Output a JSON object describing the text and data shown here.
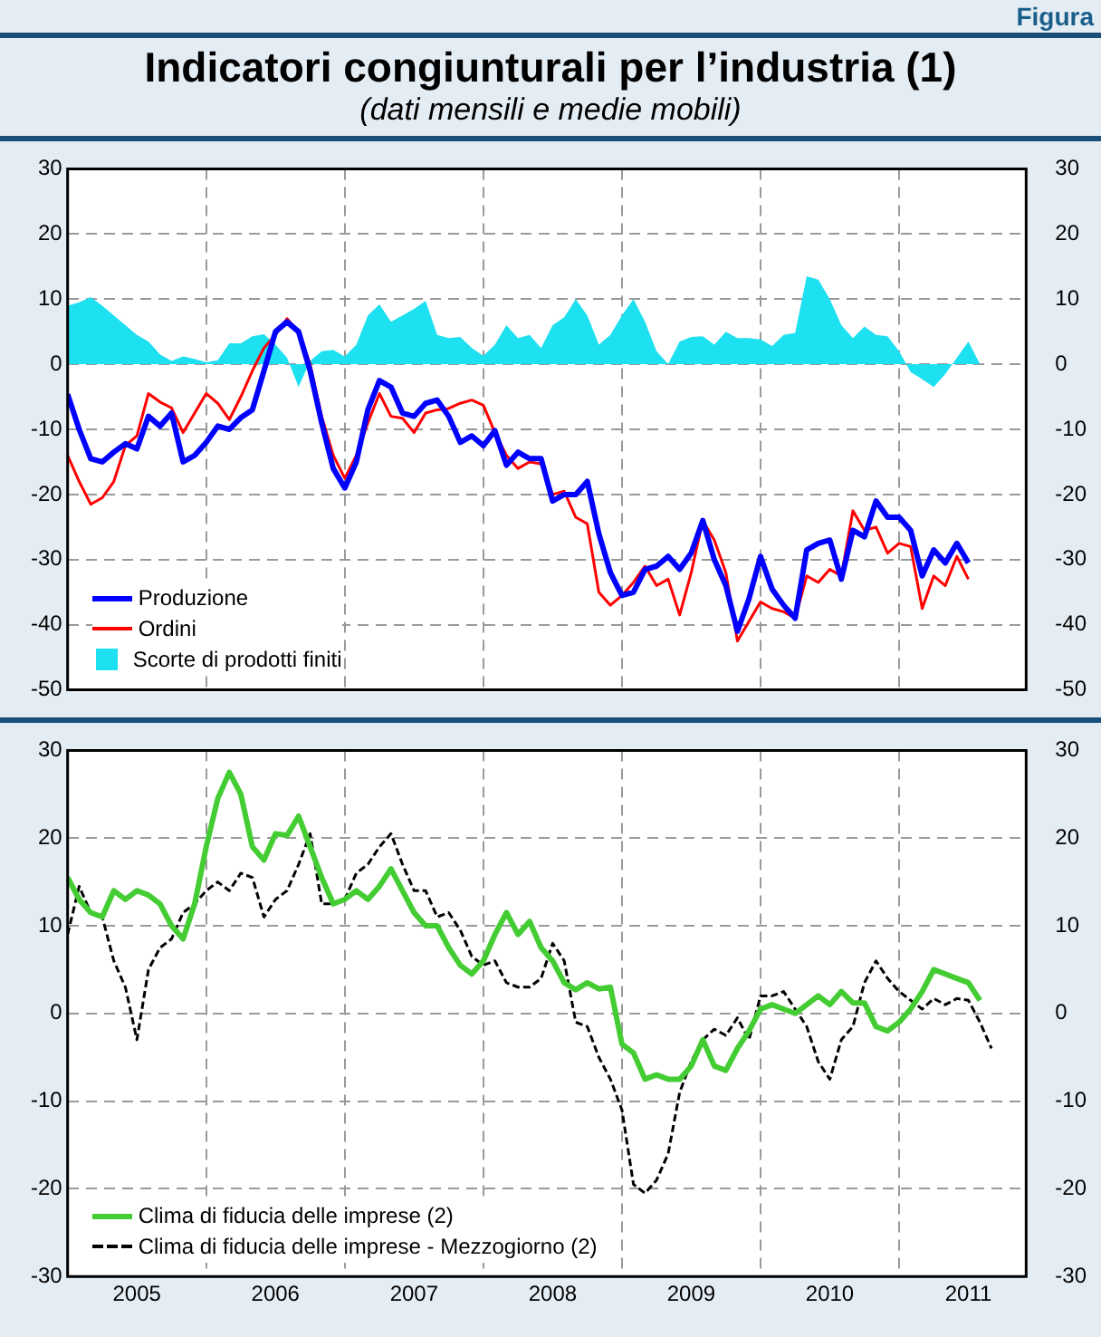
{
  "chart_data": [
    {
      "type": "line",
      "title": "Indicatori congiunturali per l’industria (1)",
      "subtitle": "(dati mensili e medie mobili)",
      "annotations": [
        "Figura"
      ],
      "x": [
        "2005-01",
        "2005-02",
        "2005-03",
        "2005-04",
        "2005-05",
        "2005-06",
        "2005-07",
        "2005-08",
        "2005-09",
        "2005-10",
        "2005-11",
        "2005-12",
        "2006-01",
        "2006-02",
        "2006-03",
        "2006-04",
        "2006-05",
        "2006-06",
        "2006-07",
        "2006-08",
        "2006-09",
        "2006-10",
        "2006-11",
        "2006-12",
        "2007-01",
        "2007-02",
        "2007-03",
        "2007-04",
        "2007-05",
        "2007-06",
        "2007-07",
        "2007-08",
        "2007-09",
        "2007-10",
        "2007-11",
        "2007-12",
        "2008-01",
        "2008-02",
        "2008-03",
        "2008-04",
        "2008-05",
        "2008-06",
        "2008-07",
        "2008-08",
        "2008-09",
        "2008-10",
        "2008-11",
        "2008-12",
        "2009-01",
        "2009-02",
        "2009-03",
        "2009-04",
        "2009-05",
        "2009-06",
        "2009-07",
        "2009-08",
        "2009-09",
        "2009-10",
        "2009-11",
        "2009-12",
        "2010-01",
        "2010-02",
        "2010-03",
        "2010-04",
        "2010-05",
        "2010-06",
        "2010-07",
        "2010-08",
        "2010-09",
        "2010-10",
        "2010-11",
        "2010-12",
        "2011-01",
        "2011-02",
        "2011-03",
        "2011-04",
        "2011-05",
        "2011-06",
        "2011-07",
        "2011-08"
      ],
      "series": [
        {
          "name": "Produzione",
          "color": "#0000ff",
          "line_style": "solid",
          "values": [
            -4.6,
            -10,
            -14.5,
            -15,
            -13.5,
            -12.2,
            -13,
            -8,
            -9.5,
            -7.5,
            -15,
            -14,
            -12,
            -9.5,
            -10,
            -8.2,
            -7,
            -1,
            5,
            6.5,
            5,
            -1,
            -9,
            -16,
            -19,
            -15,
            -7,
            -2.5,
            -3.5,
            -7.5,
            -8,
            -6,
            -5.5,
            -8,
            -12,
            -11,
            -12.5,
            -10.2,
            -15.5,
            -13.5,
            -14.5,
            -14.5,
            -21,
            -20,
            -20,
            -18,
            -26,
            -32,
            -35.5,
            -35,
            -31.5,
            -31,
            -29.5,
            -31.5,
            -29,
            -24,
            -30,
            -34,
            -41,
            -36,
            -29.5,
            -34.5,
            -37,
            -39,
            -28.5,
            -27.5,
            -27,
            -33,
            -25.5,
            -26.5,
            -21,
            -23.5,
            -23.5,
            -25.5,
            -32.5,
            -28.5,
            -30.5,
            -27.5,
            -30.5,
            null
          ]
        },
        {
          "name": "Ordini",
          "color": "#ff0000",
          "line_style": "solid",
          "values": [
            -14,
            -18,
            -21.5,
            -20.5,
            -18,
            -12.5,
            -11,
            -4.5,
            -5.8,
            -6.7,
            -10.5,
            -7.5,
            -4.5,
            -6,
            -8.5,
            -5,
            -1,
            2.5,
            4.5,
            7,
            5,
            0,
            -8,
            -14,
            -17.5,
            -14,
            -9,
            -4.5,
            -8,
            -8.3,
            -10.5,
            -7.5,
            -7,
            -6.8,
            -6,
            -5.5,
            -6.3,
            -10.5,
            -14,
            -16,
            -15,
            -15.3,
            -20,
            -19.5,
            -23.5,
            -24.5,
            -35,
            -37,
            -35.5,
            -33.5,
            -31,
            -34,
            -33,
            -38.5,
            -32,
            -24,
            -27,
            -32,
            -42.5,
            -39.5,
            -36.5,
            -37.5,
            -38,
            -39,
            -32.5,
            -33.5,
            -31.5,
            -32.5,
            -22.5,
            -25.5,
            -25,
            -29,
            -27.5,
            -28,
            -37.5,
            -32.5,
            -34,
            -29.5,
            -33,
            null
          ]
        },
        {
          "name": "Scorte di prodotti finiti",
          "type": "area",
          "color": "#1de0f0",
          "values": [
            9,
            9.5,
            10.3,
            9,
            7.5,
            6,
            4.5,
            3.5,
            1.5,
            0.5,
            1.2,
            0.8,
            0.3,
            0.6,
            3.2,
            3.2,
            4.3,
            4.6,
            3,
            1,
            -3.5,
            0.5,
            2,
            2.2,
            1.2,
            3,
            7.5,
            9.2,
            6.5,
            7.5,
            8.5,
            9.7,
            4.5,
            4,
            4.2,
            2.5,
            1.3,
            3,
            6,
            4,
            4.5,
            2.5,
            6,
            7.2,
            10,
            7.5,
            3,
            4.5,
            7.5,
            10,
            6.5,
            2,
            0,
            3.5,
            4.2,
            4.3,
            3,
            5,
            4,
            4,
            3.8,
            2.8,
            4.5,
            4.8,
            13.5,
            13,
            10,
            6,
            4,
            5.8,
            4.5,
            4.3,
            2,
            -1.2,
            -2.3,
            -3.5,
            -1.5,
            1,
            3.5,
            0
          ]
        }
      ],
      "xlim": [
        "2005-01",
        "2011-12"
      ],
      "xticks": [
        {
          "value": "2006-01",
          "label": null
        },
        {
          "value": "2007-01",
          "label": null
        },
        {
          "value": "2008-01",
          "label": null
        },
        {
          "value": "2009-01",
          "label": null
        },
        {
          "value": "2010-01",
          "label": null
        },
        {
          "value": "2011-01",
          "label": null
        }
      ],
      "ylim": [
        -50,
        30
      ],
      "yticks": [
        -50,
        -40,
        -30,
        -20,
        -10,
        0,
        10,
        20,
        30
      ],
      "y2lim": [
        -50,
        30
      ],
      "y2ticks": [
        -50,
        -40,
        -30,
        -20,
        -10,
        0,
        10,
        20,
        30
      ],
      "tick_labels": "y",
      "grid": true,
      "legend": "bottom left",
      "marker": "none"
    },
    {
      "type": "line",
      "x": [
        "2005-01",
        "2005-02",
        "2005-03",
        "2005-04",
        "2005-05",
        "2005-06",
        "2005-07",
        "2005-08",
        "2005-09",
        "2005-10",
        "2005-11",
        "2005-12",
        "2006-01",
        "2006-02",
        "2006-03",
        "2006-04",
        "2006-05",
        "2006-06",
        "2006-07",
        "2006-08",
        "2006-09",
        "2006-10",
        "2006-11",
        "2006-12",
        "2007-01",
        "2007-02",
        "2007-03",
        "2007-04",
        "2007-05",
        "2007-06",
        "2007-07",
        "2007-08",
        "2007-09",
        "2007-10",
        "2007-11",
        "2007-12",
        "2008-01",
        "2008-02",
        "2008-03",
        "2008-04",
        "2008-05",
        "2008-06",
        "2008-07",
        "2008-08",
        "2008-09",
        "2008-10",
        "2008-11",
        "2008-12",
        "2009-01",
        "2009-02",
        "2009-03",
        "2009-04",
        "2009-05",
        "2009-06",
        "2009-07",
        "2009-08",
        "2009-09",
        "2009-10",
        "2009-11",
        "2009-12",
        "2010-01",
        "2010-02",
        "2010-03",
        "2010-04",
        "2010-05",
        "2010-06",
        "2010-07",
        "2010-08",
        "2010-09",
        "2010-10",
        "2010-11",
        "2010-12",
        "2011-01",
        "2011-02",
        "2011-03",
        "2011-04",
        "2011-05",
        "2011-06",
        "2011-07",
        "2011-08",
        "2011-09"
      ],
      "series": [
        {
          "name": "Clima di fiducia delle imprese (2)",
          "color": "#44cc33",
          "line_style": "solid",
          "values": [
            15.5,
            13,
            11.5,
            11,
            14,
            13,
            14,
            13.5,
            12.5,
            10,
            8.5,
            12.5,
            19,
            24.5,
            27.5,
            25,
            19,
            17.5,
            20.5,
            20.3,
            22.5,
            19,
            15.5,
            12.5,
            13,
            14,
            13,
            14.5,
            16.5,
            14,
            11.5,
            10,
            10,
            7.5,
            5.5,
            4.5,
            6,
            9,
            11.5,
            9,
            10.5,
            7.5,
            6,
            3.5,
            2.7,
            3.5,
            2.8,
            3,
            -3.5,
            -4.5,
            -7.5,
            -7,
            -7.5,
            -7.5,
            -6,
            -3,
            -6,
            -6.5,
            -4,
            -2,
            0.5,
            1,
            0.5,
            0,
            1,
            2,
            1,
            2.5,
            1.2,
            1.2,
            -1.5,
            -2,
            -1,
            0.5,
            2.5,
            5,
            4.5,
            4,
            3.5,
            1.5,
            null
          ]
        },
        {
          "name": "Clima di fiducia delle imprese - Mezzogiorno (2)",
          "color": "#000000",
          "line_style": "dashed",
          "values": [
            9,
            14.5,
            11.5,
            11,
            6,
            3,
            -3,
            5,
            7.5,
            8.5,
            11.5,
            12.5,
            14,
            15,
            14,
            16,
            15.5,
            11,
            13,
            14,
            17,
            20.5,
            12.5,
            12.5,
            13,
            16,
            17,
            19,
            20.5,
            17,
            14,
            14,
            11,
            11.5,
            9.5,
            6.5,
            5.5,
            6,
            3.5,
            3,
            3,
            4,
            8,
            6,
            -1,
            -1.5,
            -5,
            -7.5,
            -11,
            -19.5,
            -20.5,
            -19,
            -16,
            -9,
            -5.5,
            -3,
            -1.8,
            -2.5,
            -0.5,
            -3,
            2,
            2,
            2.5,
            0.5,
            -1.5,
            -5.5,
            -7.5,
            -3,
            -1.5,
            3.5,
            6,
            4,
            2.5,
            1.5,
            0.5,
            1.7,
            1,
            1.7,
            1.5,
            -1,
            -4
          ]
        }
      ],
      "xlim": [
        "2005-01",
        "2011-12"
      ],
      "xticks": [
        {
          "value": "2005-07",
          "label": "2005"
        },
        {
          "value": "2006-01",
          "label": null
        },
        {
          "value": "2006-07",
          "label": "2006"
        },
        {
          "value": "2007-01",
          "label": null
        },
        {
          "value": "2007-07",
          "label": "2007"
        },
        {
          "value": "2008-01",
          "label": null
        },
        {
          "value": "2008-07",
          "label": "2008"
        },
        {
          "value": "2009-01",
          "label": null
        },
        {
          "value": "2009-07",
          "label": "2009"
        },
        {
          "value": "2010-01",
          "label": null
        },
        {
          "value": "2010-07",
          "label": "2010"
        },
        {
          "value": "2011-01",
          "label": null
        },
        {
          "value": "2011-07",
          "label": "2011"
        }
      ],
      "ylim": [
        -30,
        30
      ],
      "yticks": [
        -30,
        -20,
        -10,
        0,
        10,
        20,
        30
      ],
      "y2lim": [
        -30,
        30
      ],
      "y2ticks": [
        -30,
        -20,
        -10,
        0,
        10,
        20,
        30
      ],
      "grid": true,
      "legend": "bottom left",
      "marker": "none"
    }
  ]
}
